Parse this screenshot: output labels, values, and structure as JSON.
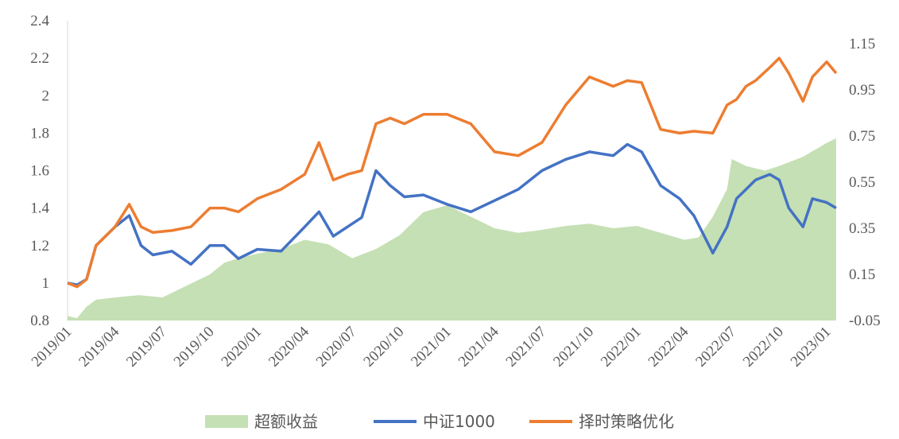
{
  "chart_data": {
    "type": "line",
    "title": "",
    "xlabel": "",
    "ylabel": "",
    "ylim": [
      0.8,
      2.4
    ],
    "yticks": [
      "2.4",
      "2.2",
      "2",
      "1.8",
      "1.6",
      "1.4",
      "1.2",
      "1",
      "0.8"
    ],
    "y2lim": [
      -0.05,
      1.25
    ],
    "y2ticks": [
      "1.15",
      "0.95",
      "0.75",
      "0.55",
      "0.35",
      "0.15",
      "-0.05"
    ],
    "xticks": [
      "2019/01",
      "2019/04",
      "2019/07",
      "2019/10",
      "2020/01",
      "2020/04",
      "2020/07",
      "2020/10",
      "2021/01",
      "2021/04",
      "2021/07",
      "2021/10",
      "2022/01",
      "2022/04",
      "2022/07",
      "2022/10",
      "2023/01"
    ],
    "legend_position": "bottom",
    "series": [
      {
        "name": "超额收益",
        "type": "area",
        "axis": "right",
        "color": "#c5e0b4",
        "x": [
          0,
          0.2,
          0.4,
          0.6,
          1,
          1.5,
          2,
          2.5,
          3,
          3.3,
          3.6,
          4,
          4.5,
          5,
          5.5,
          6,
          6.5,
          7,
          7.5,
          8,
          8.5,
          9,
          9.5,
          9.9,
          10.2,
          10.5,
          11,
          11.5,
          12,
          12.5,
          13,
          13.3,
          13.6,
          13.9,
          14,
          14.3,
          14.7,
          15,
          15.5,
          16,
          16.2
        ],
        "values": [
          -0.03,
          -0.04,
          0.01,
          0.04,
          0.05,
          0.06,
          0.05,
          0.1,
          0.15,
          0.2,
          0.22,
          0.24,
          0.26,
          0.3,
          0.28,
          0.22,
          0.26,
          0.32,
          0.42,
          0.45,
          0.4,
          0.35,
          0.33,
          0.34,
          0.35,
          0.36,
          0.37,
          0.35,
          0.36,
          0.33,
          0.3,
          0.31,
          0.4,
          0.52,
          0.65,
          0.62,
          0.6,
          0.62,
          0.66,
          0.72,
          0.74
        ]
      },
      {
        "name": "中证1000",
        "type": "line",
        "axis": "left",
        "color": "#4472c4",
        "x": [
          0,
          0.2,
          0.4,
          0.6,
          1,
          1.3,
          1.55,
          1.8,
          2.2,
          2.6,
          3,
          3.3,
          3.6,
          4,
          4.5,
          5,
          5.3,
          5.6,
          5.9,
          6.2,
          6.5,
          6.8,
          7.1,
          7.5,
          8,
          8.5,
          9,
          9.5,
          10,
          10.5,
          11,
          11.5,
          11.8,
          12.1,
          12.5,
          12.9,
          13.2,
          13.6,
          13.9,
          14.1,
          14.3,
          14.5,
          14.8,
          15,
          15.2,
          15.5,
          15.7,
          16,
          16.2
        ],
        "values": [
          1,
          0.99,
          1.02,
          1.2,
          1.3,
          1.36,
          1.2,
          1.15,
          1.17,
          1.1,
          1.2,
          1.2,
          1.13,
          1.18,
          1.17,
          1.3,
          1.38,
          1.25,
          1.3,
          1.35,
          1.6,
          1.52,
          1.46,
          1.47,
          1.42,
          1.38,
          1.44,
          1.5,
          1.6,
          1.66,
          1.7,
          1.68,
          1.74,
          1.7,
          1.52,
          1.45,
          1.36,
          1.16,
          1.3,
          1.45,
          1.5,
          1.55,
          1.58,
          1.55,
          1.4,
          1.3,
          1.45,
          1.43,
          1.4
        ]
      },
      {
        "name": "择时策略优化",
        "type": "line",
        "axis": "left",
        "color": "#ed7d31",
        "x": [
          0,
          0.2,
          0.4,
          0.6,
          1,
          1.3,
          1.55,
          1.8,
          2.2,
          2.6,
          3,
          3.3,
          3.6,
          4,
          4.5,
          5,
          5.3,
          5.6,
          5.9,
          6.2,
          6.5,
          6.8,
          7.1,
          7.5,
          8,
          8.5,
          9,
          9.5,
          10,
          10.5,
          11,
          11.5,
          11.8,
          12.1,
          12.5,
          12.9,
          13.2,
          13.6,
          13.9,
          14.1,
          14.3,
          14.5,
          14.8,
          15,
          15.2,
          15.5,
          15.7,
          16,
          16.2
        ],
        "values": [
          1,
          0.98,
          1.02,
          1.2,
          1.3,
          1.42,
          1.3,
          1.27,
          1.28,
          1.3,
          1.4,
          1.4,
          1.38,
          1.45,
          1.5,
          1.58,
          1.75,
          1.55,
          1.58,
          1.6,
          1.85,
          1.88,
          1.85,
          1.9,
          1.9,
          1.85,
          1.7,
          1.68,
          1.75,
          1.95,
          2.1,
          2.05,
          2.08,
          2.07,
          1.82,
          1.8,
          1.81,
          1.8,
          1.95,
          1.98,
          2.05,
          2.08,
          2.15,
          2.2,
          2.12,
          1.97,
          2.1,
          2.18,
          2.12
        ]
      }
    ]
  }
}
